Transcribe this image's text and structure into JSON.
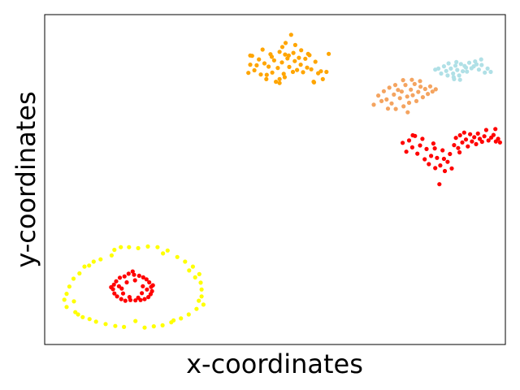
{
  "chart_data": {
    "type": "scatter",
    "title": "",
    "xlabel": "x-coordinates",
    "ylabel": "y-coordinates",
    "xlim": [
      0,
      100
    ],
    "ylim": [
      0,
      100
    ],
    "grid": false,
    "legend": "none",
    "series": [
      {
        "color": "#ffff00",
        "values": [
          [
            4.6,
            15.2
          ],
          [
            4.1,
            13.4
          ],
          [
            4.6,
            11.2
          ],
          [
            5.2,
            17.4
          ],
          [
            6.1,
            19.8
          ],
          [
            6.5,
            9.6
          ],
          [
            7.4,
            21.4
          ],
          [
            8.1,
            8.1
          ],
          [
            8.5,
            23.5
          ],
          [
            9.6,
            7.5
          ],
          [
            10.5,
            25.0
          ],
          [
            11.0,
            6.7
          ],
          [
            12.0,
            25.7
          ],
          [
            13.1,
            6.0
          ],
          [
            14.4,
            26.9
          ],
          [
            15.2,
            5.4
          ],
          [
            16.4,
            29.4
          ],
          [
            17.1,
            5.1
          ],
          [
            18.2,
            29.4
          ],
          [
            19.6,
            6.9
          ],
          [
            20.2,
            29.1
          ],
          [
            21.6,
            4.9
          ],
          [
            22.3,
            29.6
          ],
          [
            23.6,
            5.3
          ],
          [
            24.4,
            29.4
          ],
          [
            25.5,
            5.6
          ],
          [
            26.6,
            28.4
          ],
          [
            27.4,
            6.5
          ],
          [
            28.7,
            26.4
          ],
          [
            29.5,
            7.7
          ],
          [
            30.4,
            25.0
          ],
          [
            31.2,
            8.9
          ],
          [
            32.1,
            23.5
          ],
          [
            32.9,
            10.6
          ],
          [
            33.5,
            21.2
          ],
          [
            33.8,
            18.6
          ],
          [
            34.0,
            16.5
          ],
          [
            34.0,
            14.4
          ],
          [
            34.4,
            11.9
          ],
          [
            33.4,
            13.1
          ],
          [
            32.6,
            20.2
          ],
          [
            25.6,
            27.5
          ],
          [
            15.0,
            28.6
          ],
          [
            9.5,
            23.8
          ],
          [
            6.2,
            12.9
          ],
          [
            7.1,
            8.9
          ],
          [
            27.9,
            7.1
          ],
          [
            31.3,
            22.3
          ]
        ]
      },
      {
        "color": "#ff0000",
        "values": [
          [
            14.7,
            16.6
          ],
          [
            14.9,
            18.0
          ],
          [
            15.0,
            15.3
          ],
          [
            15.4,
            19.0
          ],
          [
            15.6,
            14.4
          ],
          [
            16.2,
            20.1
          ],
          [
            16.5,
            13.6
          ],
          [
            17.2,
            20.5
          ],
          [
            17.4,
            13.1
          ],
          [
            18.1,
            21.3
          ],
          [
            18.5,
            13.3
          ],
          [
            19.3,
            21.0
          ],
          [
            19.6,
            13.2
          ],
          [
            20.4,
            20.7
          ],
          [
            20.7,
            13.3
          ],
          [
            21.3,
            20.2
          ],
          [
            21.6,
            13.6
          ],
          [
            22.0,
            19.6
          ],
          [
            22.4,
            14.2
          ],
          [
            22.6,
            18.7
          ],
          [
            22.9,
            15.1
          ],
          [
            23.0,
            17.3
          ],
          [
            23.2,
            16.0
          ],
          [
            21.2,
            17.5
          ],
          [
            16.6,
            16.8
          ],
          [
            17.7,
            18.7
          ],
          [
            19.5,
            19.3
          ],
          [
            16.0,
            17.5
          ],
          [
            22.1,
            16.5
          ],
          [
            18.3,
            14.2
          ],
          [
            20.2,
            14.0
          ],
          [
            21.0,
            15.4
          ],
          [
            16.9,
            15.3
          ],
          [
            23.4,
            17.8
          ],
          [
            14.3,
            17.2
          ],
          [
            19.0,
            22.0
          ]
        ]
      },
      {
        "color": "#ff0000",
        "values": [
          [
            77.8,
            61.2
          ],
          [
            78.6,
            58.5
          ],
          [
            79.2,
            61.9
          ],
          [
            79.9,
            59.8
          ],
          [
            80.5,
            63.3
          ],
          [
            81.0,
            57.9
          ],
          [
            81.6,
            60.4
          ],
          [
            82.1,
            62.4
          ],
          [
            82.6,
            56.2
          ],
          [
            83.0,
            59.3
          ],
          [
            83.5,
            54.7
          ],
          [
            84.0,
            57.2
          ],
          [
            84.5,
            61.0
          ],
          [
            84.9,
            53.5
          ],
          [
            85.3,
            56.6
          ],
          [
            85.8,
            48.6
          ],
          [
            86.0,
            54.3
          ],
          [
            86.5,
            58.9
          ],
          [
            87.0,
            52.6
          ],
          [
            87.6,
            55.4
          ],
          [
            88.1,
            57.8
          ],
          [
            88.5,
            53.4
          ],
          [
            89.0,
            60.5
          ],
          [
            89.4,
            62.7
          ],
          [
            89.9,
            59.6
          ],
          [
            90.3,
            63.5
          ],
          [
            90.8,
            61.3
          ],
          [
            91.2,
            64.3
          ],
          [
            91.6,
            62.2
          ],
          [
            92.0,
            60.1
          ],
          [
            92.5,
            63.8
          ],
          [
            92.9,
            61.6
          ],
          [
            93.4,
            62.9
          ],
          [
            93.8,
            60.8
          ],
          [
            94.2,
            64.0
          ],
          [
            94.6,
            62.4
          ],
          [
            95.1,
            61.5
          ],
          [
            95.6,
            63.2
          ],
          [
            96.0,
            65.1
          ],
          [
            96.5,
            61.9
          ],
          [
            97.1,
            62.8
          ],
          [
            97.6,
            63.6
          ],
          [
            98.1,
            61.6
          ],
          [
            98.6,
            62.4
          ],
          [
            99.0,
            61.3
          ],
          [
            98.0,
            65.4
          ],
          [
            80.0,
            63.5
          ],
          [
            86.8,
            56.3
          ],
          [
            90.2,
            58.3
          ],
          [
            84.8,
            59.5
          ]
        ]
      },
      {
        "color": "#f4a460",
        "values": [
          [
            71.5,
            72.8
          ],
          [
            72.5,
            75.6
          ],
          [
            73.2,
            73.9
          ],
          [
            73.7,
            76.9
          ],
          [
            74.3,
            74.4
          ],
          [
            74.9,
            78.0
          ],
          [
            75.4,
            73.2
          ],
          [
            75.9,
            75.9
          ],
          [
            76.3,
            71.5
          ],
          [
            76.8,
            77.3
          ],
          [
            77.2,
            74.8
          ],
          [
            77.6,
            76.8
          ],
          [
            78.0,
            72.3
          ],
          [
            78.4,
            78.8
          ],
          [
            78.8,
            75.3
          ],
          [
            79.2,
            73.4
          ],
          [
            79.6,
            77.4
          ],
          [
            80.0,
            75.7
          ],
          [
            80.4,
            79.1
          ],
          [
            80.8,
            73.9
          ],
          [
            81.2,
            76.7
          ],
          [
            81.7,
            78.3
          ],
          [
            82.2,
            75.1
          ],
          [
            82.7,
            77.6
          ],
          [
            83.3,
            76.1
          ],
          [
            83.8,
            78.4
          ],
          [
            84.3,
            76.8
          ],
          [
            85.0,
            77.5
          ],
          [
            78.9,
            70.5
          ],
          [
            79.8,
            80.4
          ],
          [
            76.2,
            78.8
          ],
          [
            77.9,
            80.3
          ],
          [
            81.6,
            80.0
          ],
          [
            74.6,
            71.6
          ]
        ]
      },
      {
        "color": "#b0e0e6",
        "values": [
          [
            84.9,
            83.5
          ],
          [
            85.6,
            83.8
          ],
          [
            86.2,
            82.3
          ],
          [
            86.8,
            84.5
          ],
          [
            87.3,
            83.1
          ],
          [
            87.8,
            85.4
          ],
          [
            88.3,
            83.8
          ],
          [
            88.8,
            82.3
          ],
          [
            89.3,
            84.7
          ],
          [
            89.7,
            83.4
          ],
          [
            90.1,
            81.7
          ],
          [
            90.5,
            85.2
          ],
          [
            90.9,
            83.0
          ],
          [
            91.3,
            84.6
          ],
          [
            91.8,
            82.9
          ],
          [
            92.3,
            85.6
          ],
          [
            92.8,
            83.9
          ],
          [
            93.3,
            84.5
          ],
          [
            93.9,
            85.1
          ],
          [
            94.4,
            83.5
          ],
          [
            95.0,
            84.9
          ],
          [
            95.7,
            82.6
          ],
          [
            96.3,
            83.8
          ],
          [
            97.0,
            82.8
          ],
          [
            88.9,
            81.2
          ],
          [
            90.3,
            80.4
          ],
          [
            91.6,
            84.1
          ],
          [
            89.5,
            85.8
          ],
          [
            94.9,
            86.6
          ],
          [
            93.6,
            86.0
          ],
          [
            87.6,
            81.7
          ],
          [
            89.0,
            80.6
          ]
        ]
      },
      {
        "color": "#ffa500",
        "values": [
          [
            44.2,
            82.5
          ],
          [
            44.6,
            85.0
          ],
          [
            45.0,
            87.7
          ],
          [
            45.5,
            83.3
          ],
          [
            46.0,
            84.8
          ],
          [
            46.5,
            86.6
          ],
          [
            46.9,
            82.0
          ],
          [
            47.3,
            89.6
          ],
          [
            47.7,
            85.4
          ],
          [
            48.1,
            80.6
          ],
          [
            48.6,
            84.4
          ],
          [
            49.0,
            88.2
          ],
          [
            49.4,
            82.6
          ],
          [
            49.8,
            86.3
          ],
          [
            50.2,
            79.8
          ],
          [
            50.6,
            84.0
          ],
          [
            51.0,
            88.9
          ],
          [
            51.5,
            85.7
          ],
          [
            51.9,
            82.2
          ],
          [
            52.3,
            91.6
          ],
          [
            52.7,
            86.9
          ],
          [
            53.1,
            84.3
          ],
          [
            53.5,
            94.1
          ],
          [
            53.9,
            82.8
          ],
          [
            54.3,
            86.1
          ],
          [
            54.8,
            83.4
          ],
          [
            55.2,
            87.1
          ],
          [
            55.6,
            85.0
          ],
          [
            56.1,
            82.7
          ],
          [
            56.6,
            86.8
          ],
          [
            57.0,
            84.1
          ],
          [
            57.5,
            87.9
          ],
          [
            57.9,
            83.6
          ],
          [
            58.4,
            79.8
          ],
          [
            58.8,
            85.9
          ],
          [
            59.4,
            82.4
          ],
          [
            60.0,
            83.0
          ],
          [
            60.4,
            80.6
          ],
          [
            61.2,
            82.8
          ],
          [
            48.2,
            81.9
          ],
          [
            52.2,
            88.1
          ],
          [
            44.6,
            87.8
          ],
          [
            49.3,
            87.4
          ],
          [
            58.5,
            79.6
          ],
          [
            57.2,
            88.3
          ],
          [
            61.7,
            88.3
          ],
          [
            55.7,
            89.4
          ],
          [
            54.0,
            88.6
          ],
          [
            53.0,
            87.8
          ],
          [
            54.4,
            91.0
          ],
          [
            51.6,
            90.4
          ],
          [
            52.1,
            81.2
          ],
          [
            51.0,
            80.6
          ],
          [
            51.0,
            79.4
          ]
        ]
      }
    ]
  }
}
